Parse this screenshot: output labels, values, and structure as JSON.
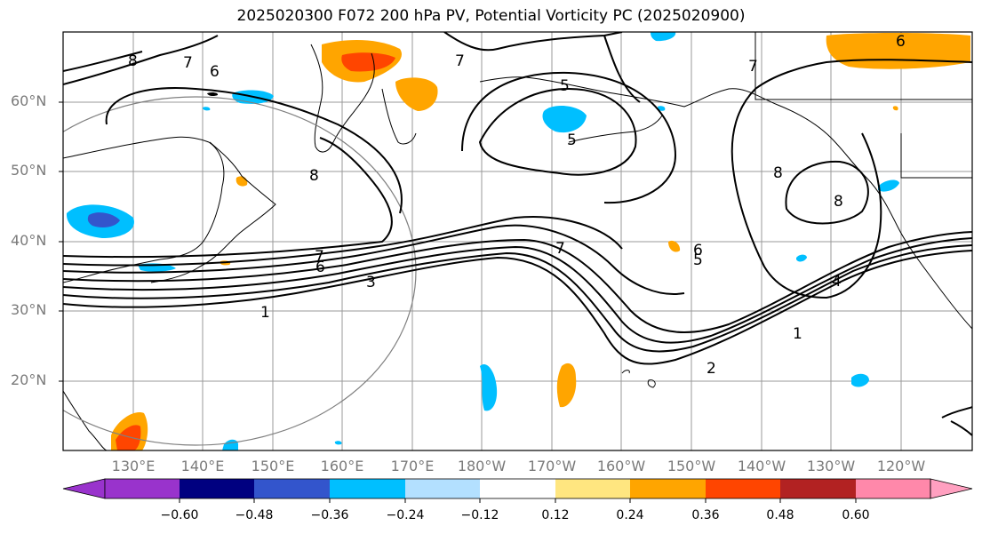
{
  "title": "2025020300 F072 200 hPa PV, Potential Vorticity PC (2025020900)",
  "lat_labels": [
    "60°N",
    "50°N",
    "40°N",
    "30°N",
    "20°N"
  ],
  "lon_labels": [
    "130°E",
    "140°E",
    "150°E",
    "160°E",
    "170°E",
    "180°W",
    "170°W",
    "160°W",
    "150°W",
    "140°W",
    "130°W",
    "120°W"
  ],
  "contour_labels": [
    "8",
    "7",
    "6",
    "7",
    "5",
    "5",
    "7",
    "6",
    "8",
    "8",
    "8",
    "7",
    "6",
    "3",
    "1",
    "7",
    "6",
    "5",
    "4",
    "1",
    "2"
  ],
  "colorbar": {
    "ticks": [
      "−0.60",
      "−0.48",
      "−0.36",
      "−0.24",
      "−0.12",
      "0.12",
      "0.24",
      "0.36",
      "0.48",
      "0.60"
    ],
    "colors": [
      "#9933cc",
      "#000080",
      "#3355cc",
      "#00bfff",
      "#b3e0ff",
      "#ffffff",
      "#ffe680",
      "#ffa500",
      "#ff4500",
      "#b22222",
      "#ff88aa",
      "#ffa0c0"
    ]
  }
}
